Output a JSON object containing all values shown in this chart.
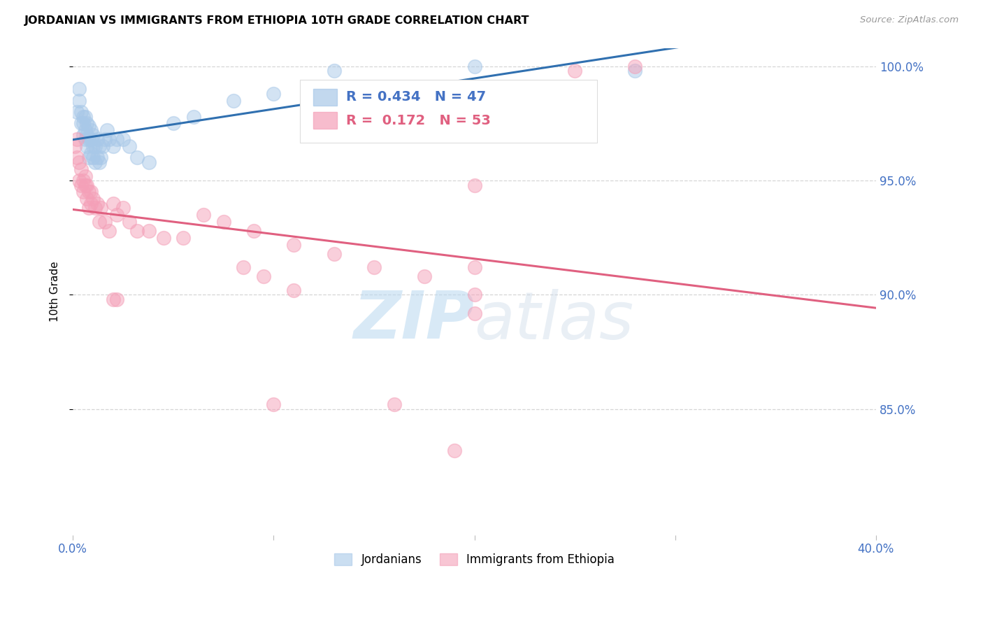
{
  "title": "JORDANIAN VS IMMIGRANTS FROM ETHIOPIA 10TH GRADE CORRELATION CHART",
  "source": "Source: ZipAtlas.com",
  "ylabel": "10th Grade",
  "xlim": [
    0.0,
    0.4
  ],
  "ylim": [
    0.795,
    1.008
  ],
  "xticks": [
    0.0,
    0.1,
    0.2,
    0.3,
    0.4
  ],
  "xticklabels": [
    "0.0%",
    "",
    "",
    "",
    "40.0%"
  ],
  "yticks": [
    0.85,
    0.9,
    0.95,
    1.0
  ],
  "yticklabels": [
    "85.0%",
    "90.0%",
    "95.0%",
    "100.0%"
  ],
  "blue_R": 0.434,
  "blue_N": 47,
  "pink_R": 0.172,
  "pink_N": 53,
  "blue_color": "#a8c8e8",
  "pink_color": "#f4a0b8",
  "blue_line_color": "#3070b0",
  "pink_line_color": "#e06080",
  "watermark_zip": "ZIP",
  "watermark_atlas": "atlas",
  "legend_label_blue": "Jordanians",
  "legend_label_pink": "Immigrants from Ethiopia",
  "blue_x": [
    0.002,
    0.003,
    0.003,
    0.004,
    0.004,
    0.005,
    0.005,
    0.005,
    0.006,
    0.006,
    0.006,
    0.007,
    0.007,
    0.007,
    0.008,
    0.008,
    0.008,
    0.009,
    0.009,
    0.009,
    0.01,
    0.01,
    0.01,
    0.011,
    0.011,
    0.012,
    0.012,
    0.013,
    0.013,
    0.014,
    0.015,
    0.016,
    0.017,
    0.018,
    0.02,
    0.022,
    0.025,
    0.028,
    0.032,
    0.038,
    0.05,
    0.06,
    0.08,
    0.1,
    0.13,
    0.2,
    0.28
  ],
  "blue_y": [
    0.98,
    0.99,
    0.985,
    0.975,
    0.98,
    0.97,
    0.975,
    0.978,
    0.968,
    0.972,
    0.978,
    0.965,
    0.97,
    0.975,
    0.96,
    0.968,
    0.974,
    0.962,
    0.968,
    0.972,
    0.96,
    0.965,
    0.97,
    0.958,
    0.965,
    0.96,
    0.968,
    0.958,
    0.965,
    0.96,
    0.965,
    0.968,
    0.972,
    0.968,
    0.965,
    0.968,
    0.968,
    0.965,
    0.96,
    0.958,
    0.975,
    0.978,
    0.985,
    0.988,
    0.998,
    1.0,
    0.998
  ],
  "pink_x": [
    0.001,
    0.002,
    0.002,
    0.003,
    0.003,
    0.004,
    0.004,
    0.005,
    0.005,
    0.006,
    0.006,
    0.007,
    0.007,
    0.008,
    0.008,
    0.009,
    0.009,
    0.01,
    0.011,
    0.012,
    0.013,
    0.014,
    0.016,
    0.018,
    0.02,
    0.022,
    0.025,
    0.028,
    0.032,
    0.038,
    0.045,
    0.055,
    0.065,
    0.075,
    0.09,
    0.11,
    0.13,
    0.15,
    0.175,
    0.2,
    0.2,
    0.2,
    0.25,
    0.28,
    0.2,
    0.16,
    0.1,
    0.085,
    0.095,
    0.11,
    0.022,
    0.02,
    0.19
  ],
  "pink_y": [
    0.965,
    0.96,
    0.968,
    0.95,
    0.958,
    0.948,
    0.955,
    0.95,
    0.945,
    0.948,
    0.952,
    0.942,
    0.948,
    0.938,
    0.945,
    0.94,
    0.945,
    0.942,
    0.938,
    0.94,
    0.932,
    0.938,
    0.932,
    0.928,
    0.94,
    0.935,
    0.938,
    0.932,
    0.928,
    0.928,
    0.925,
    0.925,
    0.935,
    0.932,
    0.928,
    0.922,
    0.918,
    0.912,
    0.908,
    0.912,
    0.9,
    0.892,
    0.998,
    1.0,
    0.948,
    0.852,
    0.852,
    0.912,
    0.908,
    0.902,
    0.898,
    0.898,
    0.832
  ]
}
